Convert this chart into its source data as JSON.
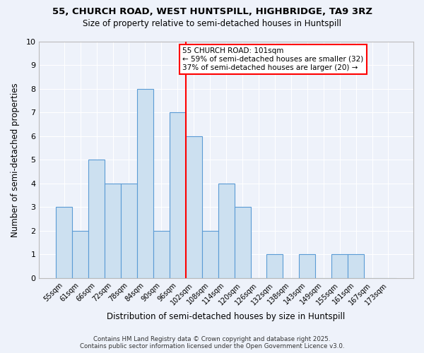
{
  "title1": "55, CHURCH ROAD, WEST HUNTSPILL, HIGHBRIDGE, TA9 3RZ",
  "title2": "Size of property relative to semi-detached houses in Huntspill",
  "xlabel": "Distribution of semi-detached houses by size in Huntspill",
  "ylabel": "Number of semi-detached properties",
  "bin_labels": [
    "55sqm",
    "61sqm",
    "66sqm",
    "72sqm",
    "78sqm",
    "84sqm",
    "90sqm",
    "96sqm",
    "102sqm",
    "108sqm",
    "114sqm",
    "120sqm",
    "126sqm",
    "132sqm",
    "138sqm",
    "143sqm",
    "149sqm",
    "155sqm",
    "161sqm",
    "167sqm",
    "173sqm"
  ],
  "bin_values": [
    3,
    2,
    5,
    4,
    4,
    8,
    2,
    7,
    6,
    2,
    4,
    3,
    0,
    1,
    0,
    1,
    0,
    1,
    1,
    0,
    0
  ],
  "property_line_x": 8,
  "annotation_text": "55 CHURCH ROAD: 101sqm\n← 59% of semi-detached houses are smaller (32)\n37% of semi-detached houses are larger (20) →",
  "bar_color": "#cce0f0",
  "bar_edge_color": "#5b9bd5",
  "vline_color": "red",
  "annotation_box_edge": "red",
  "background_color": "#eef2fa",
  "grid_color": "white",
  "footer": "Contains HM Land Registry data © Crown copyright and database right 2025.\nContains public sector information licensed under the Open Government Licence v3.0.",
  "ylim": [
    0,
    10
  ],
  "yticks": [
    0,
    1,
    2,
    3,
    4,
    5,
    6,
    7,
    8,
    9,
    10
  ]
}
